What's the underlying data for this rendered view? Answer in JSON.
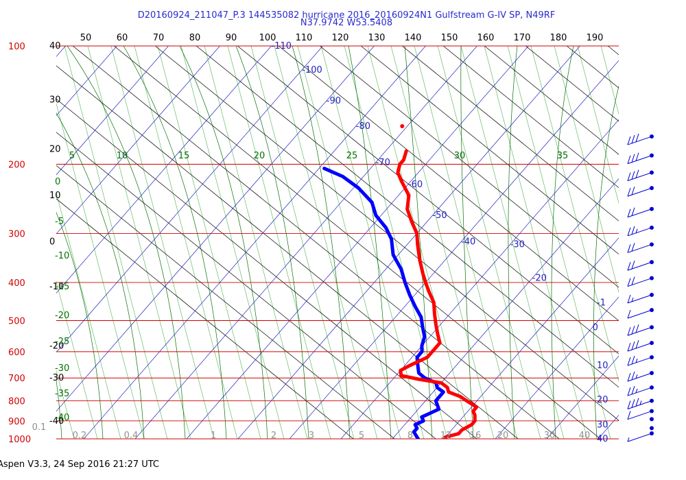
{
  "title_line1": "D20160924_211047_P.3 144535082 hurricane 2016_20160924N1 Gulfstream G-IV SP, N49RF",
  "title_line2": "N37.9742 W53.5408",
  "footer": "Aspen V3.3, 24 Sep 2016  21:27 UTC",
  "colors": {
    "isobar": "#d00000",
    "temperature": "#ff0000",
    "dewpoint": "#0000ff",
    "isotherm": "#2020c0",
    "dry_adiabat": "#000000",
    "moist_adiabat": "#007000",
    "mixing_ratio": "#009000",
    "barb": "#0000d0",
    "pressure_label": "#d00000"
  },
  "chart_data": {
    "type": "skew-t log-p",
    "pressure_levels_hPa": [
      100,
      200,
      300,
      400,
      500,
      600,
      700,
      800,
      900,
      1000
    ],
    "top_scale_labels": [
      "50",
      "60",
      "70",
      "80",
      "90",
      "100",
      "110",
      "120",
      "130",
      "140",
      "150",
      "160",
      "170",
      "180",
      "190"
    ],
    "left_labels": [
      {
        "text": "40",
        "p": 100
      },
      {
        "text": "30",
        "p": 137
      },
      {
        "text": "20",
        "p": 183
      },
      {
        "text": "10",
        "p": 240
      },
      {
        "text": "0",
        "p": 315
      },
      {
        "text": "-10",
        "p": 410
      },
      {
        "text": "-20",
        "p": 580
      },
      {
        "text": "-30",
        "p": 700
      },
      {
        "text": "-40",
        "p": 900
      }
    ],
    "isotherm_labels": [
      {
        "text": "-110",
        "p": 100
      },
      {
        "text": "-100",
        "p": 115
      },
      {
        "text": "-90",
        "p": 138
      },
      {
        "text": "-80",
        "p": 160
      },
      {
        "text": "-70",
        "p": 198
      },
      {
        "text": "-60",
        "p": 225
      },
      {
        "text": "-50",
        "p": 270
      },
      {
        "text": "-40",
        "p": 315
      },
      {
        "text": "-30",
        "p": 320
      },
      {
        "text": "-20",
        "p": 390
      },
      {
        "text": "-1",
        "p": 450
      },
      {
        "text": "0",
        "p": 520
      },
      {
        "text": "10",
        "p": 650
      },
      {
        "text": "20",
        "p": 795
      },
      {
        "text": "30",
        "p": 920
      },
      {
        "text": "40",
        "p": 1000
      }
    ],
    "moist_adiabat_labels": [
      {
        "text": "5"
      },
      {
        "text": "10"
      },
      {
        "text": "15"
      },
      {
        "text": "20"
      },
      {
        "text": "25"
      },
      {
        "text": "30"
      },
      {
        "text": "35"
      }
    ],
    "left_green_labels": [
      "0",
      "-5",
      "-10",
      "-15",
      "-20",
      "-25",
      "-30",
      "-35",
      "-40"
    ],
    "mixing_ratio_labels": [
      "0.1",
      "0.2",
      "0.4",
      "1",
      "2",
      "3",
      "5",
      "8",
      "12",
      "16",
      "20",
      "30",
      "40"
    ],
    "temperature_profile": [
      [
        1000,
        -10
      ],
      [
        990,
        -10
      ],
      [
        970,
        -8
      ],
      [
        950,
        -8
      ],
      [
        920,
        -7
      ],
      [
        900,
        -7
      ],
      [
        870,
        -8
      ],
      [
        850,
        -9
      ],
      [
        830,
        -9
      ],
      [
        800,
        -12
      ],
      [
        780,
        -14
      ],
      [
        760,
        -17
      ],
      [
        740,
        -18
      ],
      [
        720,
        -20
      ],
      [
        705,
        -25
      ],
      [
        690,
        -29
      ],
      [
        670,
        -30
      ],
      [
        650,
        -29
      ],
      [
        620,
        -27
      ],
      [
        600,
        -27
      ],
      [
        570,
        -27
      ],
      [
        540,
        -29
      ],
      [
        510,
        -31
      ],
      [
        480,
        -33
      ],
      [
        450,
        -35
      ],
      [
        420,
        -38
      ],
      [
        400,
        -40
      ],
      [
        380,
        -42
      ],
      [
        350,
        -45
      ],
      [
        320,
        -48
      ],
      [
        300,
        -50
      ],
      [
        280,
        -53
      ],
      [
        260,
        -56
      ],
      [
        240,
        -58
      ],
      [
        220,
        -62
      ],
      [
        210,
        -64
      ],
      [
        200,
        -65
      ],
      [
        195,
        -65
      ],
      [
        185,
        -66
      ]
    ],
    "dewpoint_profile": [
      [
        1000,
        -15
      ],
      [
        980,
        -16
      ],
      [
        960,
        -17
      ],
      [
        940,
        -17
      ],
      [
        920,
        -18
      ],
      [
        900,
        -17
      ],
      [
        880,
        -18
      ],
      [
        860,
        -17
      ],
      [
        840,
        -16
      ],
      [
        820,
        -17
      ],
      [
        800,
        -18
      ],
      [
        780,
        -18
      ],
      [
        760,
        -18
      ],
      [
        740,
        -20
      ],
      [
        720,
        -21
      ],
      [
        700,
        -24
      ],
      [
        680,
        -26
      ],
      [
        660,
        -27
      ],
      [
        640,
        -28
      ],
      [
        620,
        -29
      ],
      [
        600,
        -29
      ],
      [
        580,
        -30
      ],
      [
        550,
        -31
      ],
      [
        520,
        -33
      ],
      [
        490,
        -35
      ],
      [
        460,
        -38
      ],
      [
        430,
        -41
      ],
      [
        400,
        -44
      ],
      [
        370,
        -47
      ],
      [
        340,
        -51
      ],
      [
        310,
        -54
      ],
      [
        290,
        -57
      ],
      [
        270,
        -61
      ],
      [
        250,
        -64
      ],
      [
        230,
        -69
      ],
      [
        215,
        -74
      ],
      [
        205,
        -79
      ]
    ],
    "isolated_point": [
      160,
      -71
    ],
    "wind_barbs": [
      {
        "p": 170,
        "spd": 30
      },
      {
        "p": 190,
        "spd": 30
      },
      {
        "p": 210,
        "spd": 30
      },
      {
        "p": 230,
        "spd": 20
      },
      {
        "p": 260,
        "spd": 20
      },
      {
        "p": 290,
        "spd": 25
      },
      {
        "p": 320,
        "spd": 20
      },
      {
        "p": 355,
        "spd": 20
      },
      {
        "p": 390,
        "spd": 20
      },
      {
        "p": 430,
        "spd": 15
      },
      {
        "p": 470,
        "spd": 10
      },
      {
        "p": 520,
        "spd": 30
      },
      {
        "p": 570,
        "spd": 30
      },
      {
        "p": 620,
        "spd": 25
      },
      {
        "p": 680,
        "spd": 25
      },
      {
        "p": 740,
        "spd": 25
      },
      {
        "p": 800,
        "spd": 35
      },
      {
        "p": 850,
        "spd": 10
      },
      {
        "p": 920,
        "spd": 0
      },
      {
        "p": 970,
        "spd": 0
      },
      {
        "p": 1000,
        "spd": 5
      }
    ]
  }
}
